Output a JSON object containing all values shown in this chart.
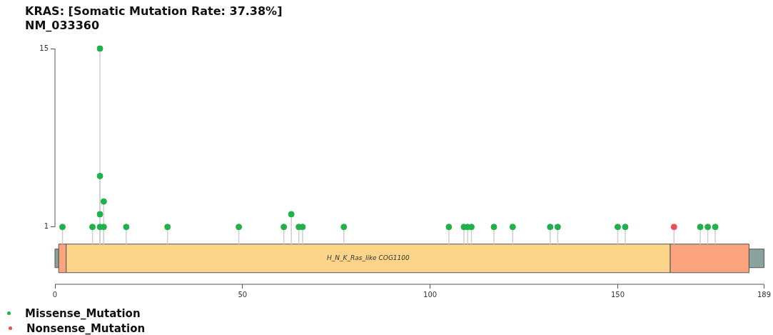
{
  "chart_data": {
    "type": "lollipop",
    "title": "KRAS: [Somatic Mutation Rate: 37.38%]",
    "subtitle": "NM_033360",
    "series": [
      {
        "name": "Missense_Mutation",
        "color": "#1fb24a",
        "x": [
          2,
          10,
          12,
          12,
          12,
          12,
          13,
          13,
          19,
          30,
          49,
          61,
          63,
          65,
          66,
          77,
          105,
          109,
          110,
          111,
          117,
          122,
          132,
          134,
          150,
          152,
          172,
          174,
          176
        ],
        "values": [
          1,
          1,
          1,
          2,
          5,
          15,
          1,
          3,
          1,
          1,
          1,
          1,
          2,
          1,
          1,
          1,
          1,
          1,
          1,
          1,
          1,
          1,
          1,
          1,
          1,
          1,
          1,
          1,
          1
        ]
      },
      {
        "name": "Nonsense_Mutation",
        "color": "#f04e4e",
        "x": [
          165
        ],
        "values": [
          1
        ]
      }
    ],
    "bands": [
      {
        "axis": "x",
        "from": 0,
        "to": 1,
        "color": "#8aa39f"
      },
      {
        "axis": "x",
        "from": 1,
        "to": 3,
        "color": "#fca47e"
      },
      {
        "axis": "x",
        "from": 3,
        "to": 164,
        "color": "#fdd58a",
        "label": "H_N_K_Ras_like COG1100"
      },
      {
        "axis": "x",
        "from": 164,
        "to": 185,
        "color": "#fca47e"
      },
      {
        "axis": "x",
        "from": 185,
        "to": 189,
        "color": "#8aa39f"
      }
    ],
    "xlim": [
      0,
      189
    ],
    "xticks": [
      0,
      50,
      100,
      150,
      189
    ],
    "ylim": [
      -3.5,
      15
    ],
    "yticks": [
      1,
      15
    ],
    "legend": "bottom left"
  }
}
